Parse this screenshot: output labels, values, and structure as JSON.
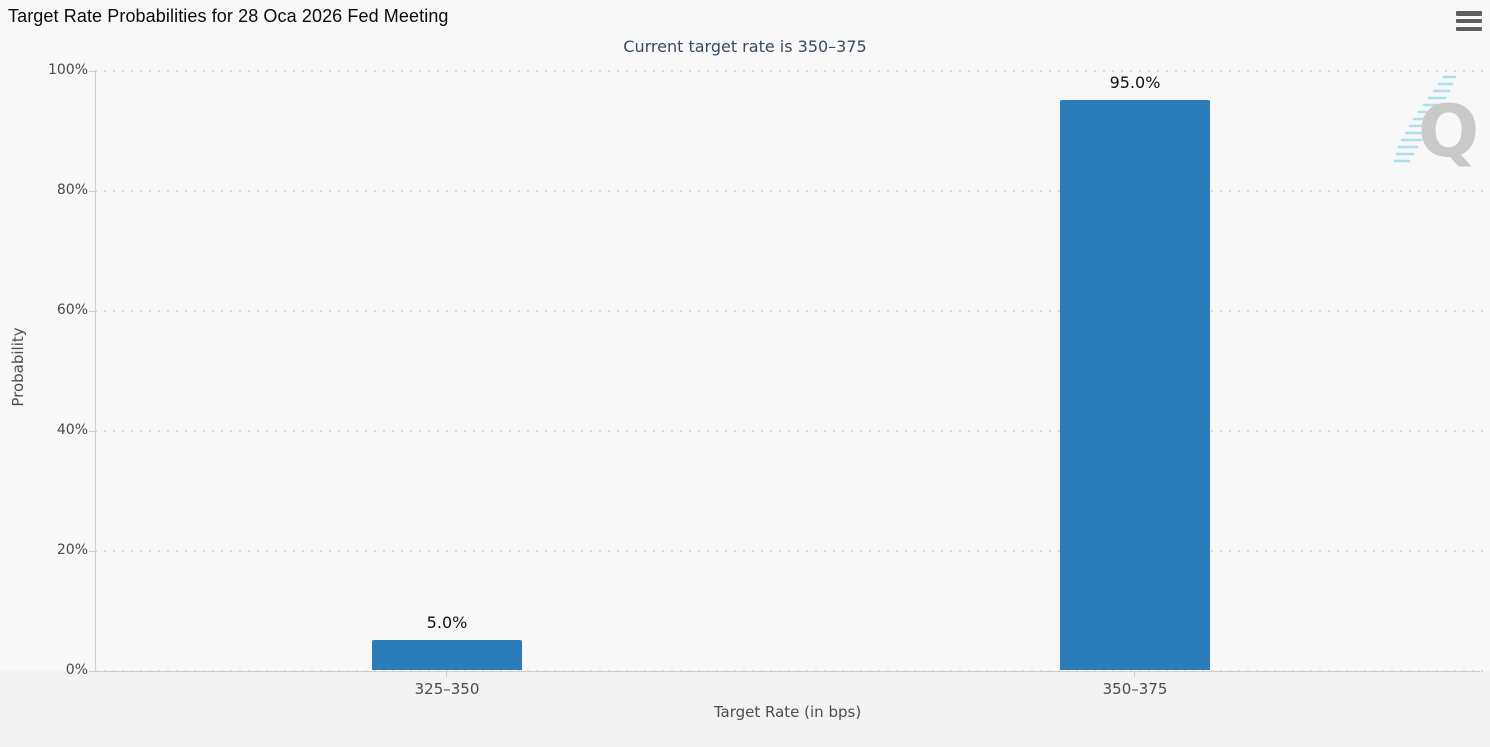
{
  "header": {
    "title": "Target Rate Probabilities for 28 Oca 2026 Fed Meeting",
    "menu_icon": "hamburger-menu-icon"
  },
  "watermark": {
    "letter": "Q"
  },
  "chart_data": {
    "type": "bar",
    "title": "Target Rate Probabilities for 28 Oca 2026 Fed Meeting",
    "subtitle": "Current target rate is 350–375",
    "categories": [
      "325–350",
      "350–375"
    ],
    "values": [
      5.0,
      95.0
    ],
    "data_labels": [
      "5.0%",
      "95.0%"
    ],
    "xlabel": "Target Rate (in bps)",
    "ylabel": "Probability",
    "ylim": [
      0,
      100
    ],
    "yticks": [
      "0%",
      "20%",
      "40%",
      "60%",
      "80%",
      "100%"
    ],
    "grid": "horizontal-dotted",
    "legend": "none",
    "bar_color": "#2b7cb8",
    "subtitle_color": "#3a4a64",
    "gridline_color": "#d7d8da",
    "axis_line_color": "#cdced0"
  }
}
